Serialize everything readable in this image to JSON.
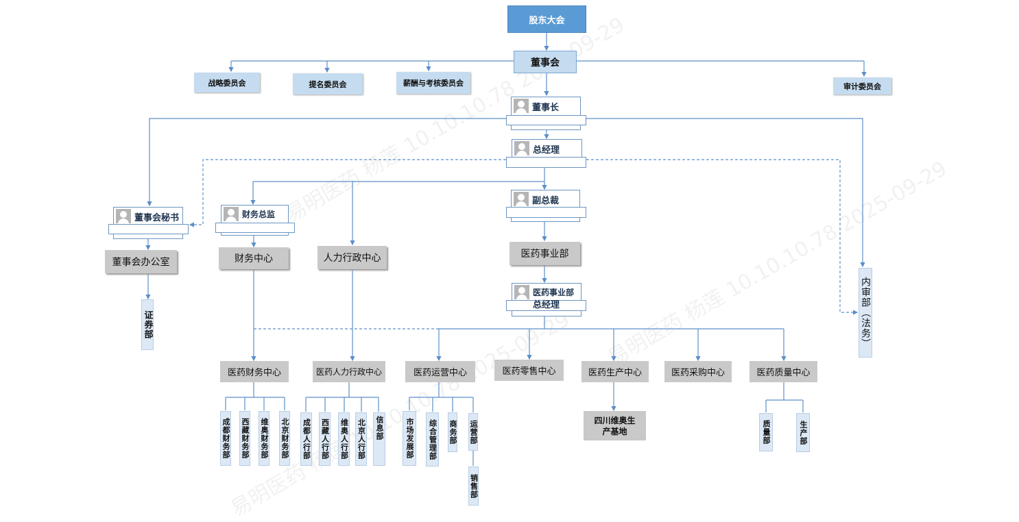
{
  "nodes": {
    "shareholders": "股东大会",
    "board": "董事会",
    "strategy": "战略委员会",
    "nomination": "提名委员会",
    "remuneration": "薪酬与考核委员会",
    "audit": "审计委员会",
    "chairman": "董事长",
    "gm": "总经理",
    "vp": "副总裁",
    "secretary": "董事会秘书",
    "cfo": "财务总监",
    "pharma_gm_1": "医药事业部",
    "pharma_gm_2": "总经理",
    "board_office": "董事会办公室",
    "finance_center": "财务中心",
    "hr_center": "人力行政中心",
    "pharma_division": "医药事业部",
    "securities": "证券部",
    "internal_audit": "内审部（法务）",
    "centers": [
      "医药财务中心",
      "医药人力行政中心",
      "医药运营中心",
      "医药零售中心",
      "医药生产中心",
      "医药采购中心",
      "医药质量中心"
    ],
    "finance_subs": [
      "成都财务部",
      "西藏财务部",
      "维奥财务部",
      "北京财务部"
    ],
    "hr_subs": [
      "成都人行部",
      "西藏人行部",
      "维奥人行部",
      "北京人行部",
      "信息部"
    ],
    "ops_subs": [
      "市场发展部",
      "综合管理部",
      "商务部",
      "运营部"
    ],
    "sales": "销售部",
    "production_base": "四川维奥生产基地",
    "quality_subs": [
      "质量部",
      "生产部"
    ]
  },
  "watermark": "易明医药 杨莲 10.10.10.78 2025-09-29",
  "colors": {
    "top": "#5b9bd5",
    "board": "#c5dbef",
    "line": "#5b8fc7",
    "center": "#c9c9c9"
  }
}
